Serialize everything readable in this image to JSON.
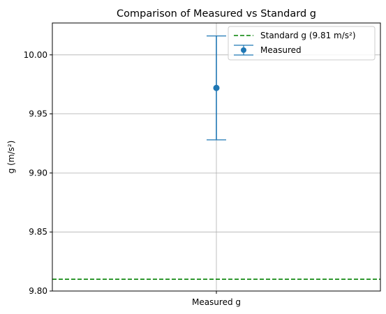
{
  "chart_data": {
    "type": "scatter",
    "title": "Comparison of Measured vs Standard g",
    "xlabel": "",
    "ylabel": "g (m/s²)",
    "ylim": [
      9.8,
      10.027
    ],
    "grid": true,
    "legend_position": "top-right",
    "categories": [
      "Measured g"
    ],
    "yticks": [
      9.8,
      9.85,
      9.9,
      9.95,
      10.0
    ],
    "ytick_labels": [
      "9.80",
      "9.85",
      "9.90",
      "9.95",
      "10.00"
    ],
    "series": [
      {
        "name": "Measured",
        "kind": "errorbar",
        "category": "Measured g",
        "value": 9.972,
        "error": 0.044,
        "color": "#1f77b4"
      }
    ],
    "reference_lines": [
      {
        "name": "Standard g (9.81 m/s²)",
        "value": 9.81,
        "style": "dashed",
        "color": "#008000"
      }
    ]
  }
}
